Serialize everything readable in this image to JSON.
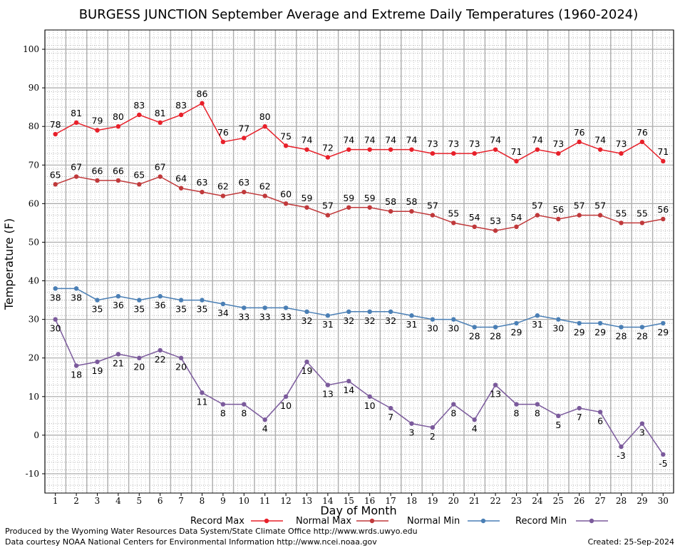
{
  "chart_data": {
    "type": "line",
    "title": "BURGESS JUNCTION September Average and Extreme Daily Temperatures (1960-2024)",
    "xlabel": "Day of Month",
    "ylabel": "Temperature (F)",
    "xlim": [
      0.5,
      30.5
    ],
    "ylim": [
      -15,
      105
    ],
    "yticks": [
      -10,
      0,
      10,
      20,
      30,
      40,
      50,
      60,
      70,
      80,
      90,
      100
    ],
    "x": [
      1,
      2,
      3,
      4,
      5,
      6,
      7,
      8,
      9,
      10,
      11,
      12,
      13,
      14,
      15,
      16,
      17,
      18,
      19,
      20,
      21,
      22,
      23,
      24,
      25,
      26,
      27,
      28,
      29,
      30
    ],
    "grid": true,
    "legend_position": "bottom",
    "series": [
      {
        "name": "Record Max",
        "color": "#e8202a",
        "label_position": "above",
        "values": [
          78,
          81,
          79,
          80,
          83,
          81,
          83,
          86,
          76,
          77,
          80,
          75,
          74,
          72,
          74,
          74,
          74,
          74,
          73,
          73,
          73,
          74,
          71,
          74,
          73,
          76,
          74,
          73,
          76,
          71
        ]
      },
      {
        "name": "Normal Max",
        "color": "#c0393b",
        "label_position": "above",
        "values": [
          65,
          67,
          66,
          66,
          65,
          67,
          64,
          63,
          62,
          63,
          62,
          60,
          59,
          57,
          59,
          59,
          58,
          58,
          57,
          55,
          54,
          53,
          54,
          57,
          56,
          57,
          57,
          55,
          55,
          56
        ]
      },
      {
        "name": "Normal Min",
        "color": "#4a7fb5",
        "label_position": "below",
        "values": [
          38,
          38,
          35,
          36,
          35,
          36,
          35,
          35,
          34,
          33,
          33,
          33,
          32,
          31,
          32,
          32,
          32,
          31,
          30,
          30,
          28,
          28,
          29,
          31,
          30,
          29,
          29,
          28,
          28,
          29
        ]
      },
      {
        "name": "Record Min",
        "color": "#7b5a9c",
        "label_position": "below",
        "values": [
          30,
          18,
          19,
          21,
          20,
          22,
          20,
          11,
          8,
          8,
          4,
          10,
          19,
          13,
          14,
          10,
          7,
          3,
          2,
          8,
          4,
          13,
          8,
          8,
          5,
          7,
          6,
          -3,
          3,
          -5
        ]
      }
    ]
  },
  "footer": {
    "produced_by": "Produced by the Wyoming Water Resources Data System/State Climate Office http://www.wrds.uwyo.edu",
    "data_courtesy": "Data courtesy NOAA National Centers for Environmental Information http://www.ncei.noaa.gov",
    "created": "Created:  25-Sep-2024"
  }
}
